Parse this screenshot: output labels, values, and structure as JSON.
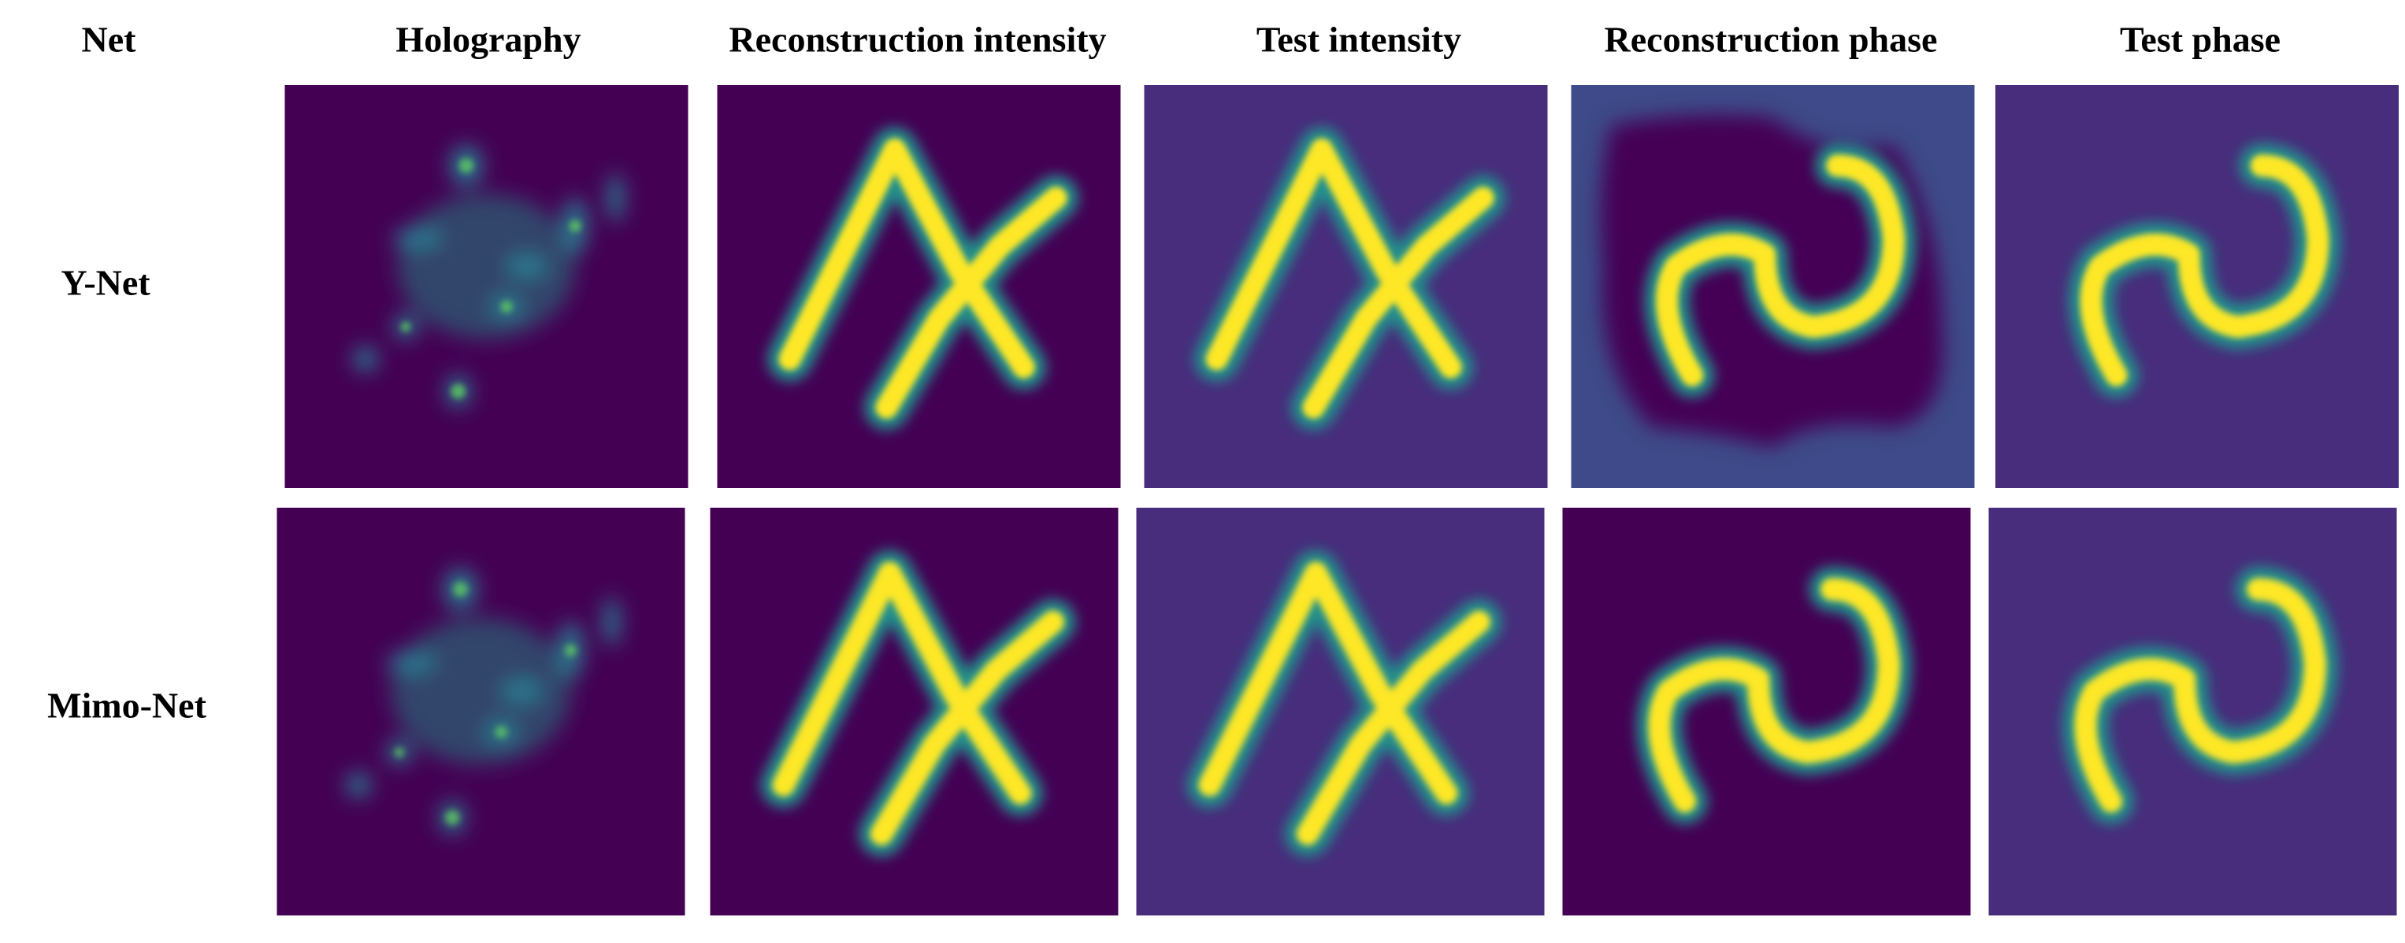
{
  "columns": [
    "Net",
    "Holography",
    "Reconstruction intensity",
    "Test intensity",
    "Reconstruction phase",
    "Test phase"
  ],
  "rows": [
    {
      "label": "Y-Net"
    },
    {
      "label": "Mimo-Net"
    }
  ]
}
